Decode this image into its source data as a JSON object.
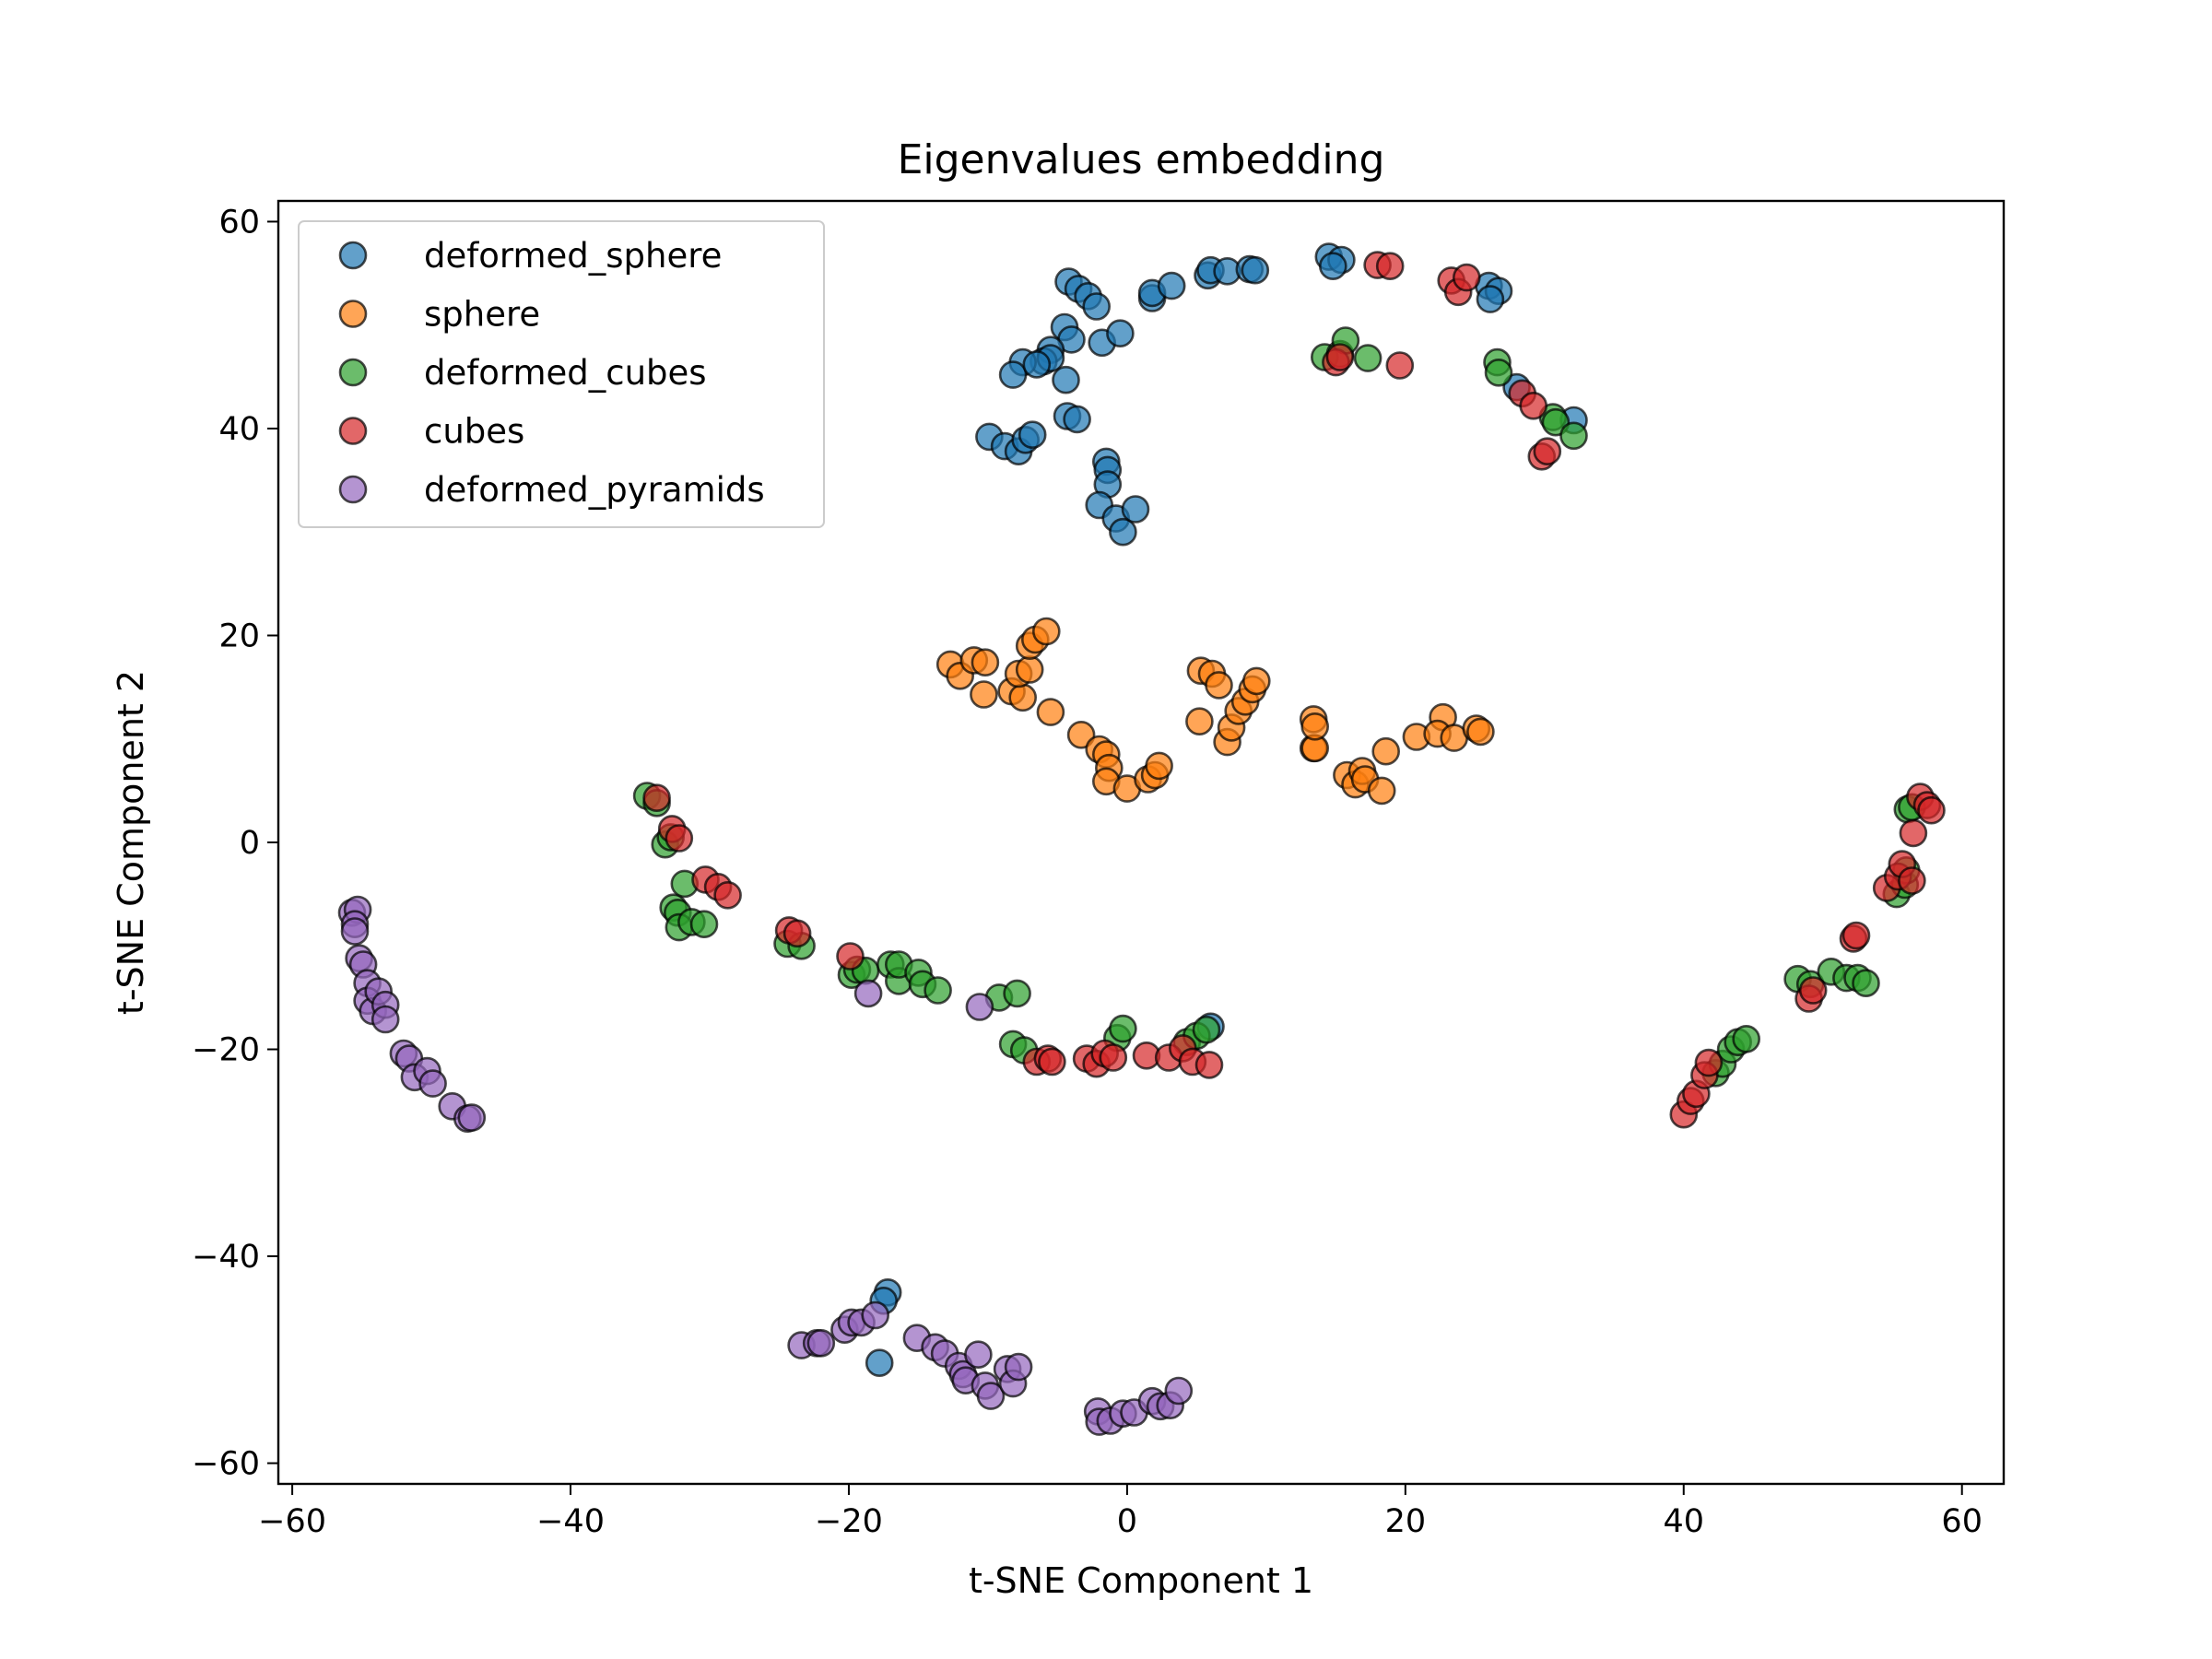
{
  "chart_data": {
    "type": "scatter",
    "title": "Eigenvalues embedding",
    "xlabel": "t-SNE Component 1",
    "ylabel": "t-SNE Component 2",
    "xlim": [
      -61,
      63
    ],
    "ylim": [
      -62,
      62
    ],
    "xticks": [
      -60,
      -40,
      -20,
      0,
      20,
      40,
      60
    ],
    "yticks": [
      -60,
      -40,
      -20,
      0,
      20,
      40,
      60
    ],
    "tick_labels_x": [
      "−60",
      "−40",
      "−20",
      "0",
      "20",
      "40",
      "60"
    ],
    "tick_labels_y": [
      "−60",
      "−40",
      "−20",
      "0",
      "20",
      "40",
      "60"
    ],
    "grid": false,
    "legend_position": "upper-left",
    "series": [
      {
        "name": "deformed_sphere",
        "color": "#1f77b4",
        "points": [
          [
            -4.2,
            54.2
          ],
          [
            -3.5,
            53.5
          ],
          [
            -2.8,
            52.8
          ],
          [
            -2.2,
            51.8
          ],
          [
            -4.5,
            49.8
          ],
          [
            -4,
            48.6
          ],
          [
            -5.5,
            47.6
          ],
          [
            -6,
            46.5
          ],
          [
            -5.5,
            46.8
          ],
          [
            -7.5,
            46.4
          ],
          [
            -8.2,
            45.2
          ],
          [
            -4.4,
            44.7
          ],
          [
            -6.5,
            46.2
          ],
          [
            -1.8,
            48.3
          ],
          [
            -0.5,
            49.2
          ],
          [
            -4.3,
            41.2
          ],
          [
            -3.6,
            40.9
          ],
          [
            -9.9,
            39.2
          ],
          [
            -8.8,
            38.3
          ],
          [
            -7.8,
            37.8
          ],
          [
            -7.3,
            38.9
          ],
          [
            -6.8,
            39.4
          ],
          [
            -1.5,
            36.8
          ],
          [
            -1.4,
            36
          ],
          [
            -1.4,
            34.6
          ],
          [
            -2,
            32.6
          ],
          [
            -0.8,
            31.3
          ],
          [
            -0.3,
            30
          ],
          [
            0.6,
            32.2
          ],
          [
            1.8,
            52.6
          ],
          [
            1.8,
            53.1
          ],
          [
            3.2,
            53.8
          ],
          [
            5.8,
            54.8
          ],
          [
            6,
            55.3
          ],
          [
            7.2,
            55.2
          ],
          [
            8.8,
            55.4
          ],
          [
            9.2,
            55.3
          ],
          [
            14.5,
            56.6
          ],
          [
            15.4,
            56.3
          ],
          [
            14.8,
            55.7
          ],
          [
            26,
            53.8
          ],
          [
            26.7,
            53.3
          ],
          [
            26.1,
            52.5
          ],
          [
            28,
            44
          ],
          [
            32.1,
            40.8
          ],
          [
            -17.2,
            -43.5
          ],
          [
            -17.5,
            -44.3
          ],
          [
            -17.8,
            -50.3
          ],
          [
            6,
            -17.8
          ]
        ]
      },
      {
        "name": "sphere",
        "color": "#ff7f0e",
        "points": [
          [
            -12.7,
            17.2
          ],
          [
            -12,
            16.1
          ],
          [
            -11,
            17.6
          ],
          [
            -10.2,
            17.4
          ],
          [
            -10.3,
            14.3
          ],
          [
            -8.3,
            14.6
          ],
          [
            -7.5,
            14
          ],
          [
            -7.8,
            16.3
          ],
          [
            -7,
            16.7
          ],
          [
            -7,
            19
          ],
          [
            -6.6,
            19.6
          ],
          [
            -5.8,
            20.4
          ],
          [
            -5.5,
            12.6
          ],
          [
            -3.3,
            10.4
          ],
          [
            -2,
            9
          ],
          [
            -1.5,
            8.5
          ],
          [
            -1.3,
            7.2
          ],
          [
            -1.5,
            5.9
          ],
          [
            0,
            5.2
          ],
          [
            1.5,
            6.1
          ],
          [
            2,
            6.5
          ],
          [
            2.3,
            7.4
          ],
          [
            5.3,
            16.6
          ],
          [
            6.1,
            16.3
          ],
          [
            6.6,
            15.2
          ],
          [
            5.2,
            11.7
          ],
          [
            7.2,
            9.7
          ],
          [
            7.5,
            11.1
          ],
          [
            8,
            12.7
          ],
          [
            8.5,
            13.6
          ],
          [
            9,
            14.8
          ],
          [
            9.3,
            15.6
          ],
          [
            13.4,
            11.9
          ],
          [
            13.4,
            9.1
          ],
          [
            13.5,
            9.1
          ],
          [
            13.5,
            11.2
          ],
          [
            15.8,
            6.5
          ],
          [
            16.4,
            5.6
          ],
          [
            16.9,
            6.9
          ],
          [
            17.1,
            6.1
          ],
          [
            18.3,
            5
          ],
          [
            18.6,
            8.8
          ],
          [
            20.8,
            10.2
          ],
          [
            22.7,
            12.1
          ],
          [
            22.3,
            10.5
          ],
          [
            23.5,
            10.1
          ],
          [
            25.1,
            11
          ],
          [
            25.4,
            10.7
          ]
        ]
      },
      {
        "name": "deformed_cubes",
        "color": "#2ca02c",
        "points": [
          [
            -34.5,
            4.5
          ],
          [
            -33.8,
            3.8
          ],
          [
            -33.2,
            -0.2
          ],
          [
            -32.8,
            0.5
          ],
          [
            -32.6,
            -6.3
          ],
          [
            -32.3,
            -6.8
          ],
          [
            -32.2,
            -8.2
          ],
          [
            -31.8,
            -4
          ],
          [
            -31.3,
            -7.7
          ],
          [
            -30.4,
            -7.9
          ],
          [
            -24.4,
            -9.8
          ],
          [
            -23.4,
            -10
          ],
          [
            -19.8,
            -12.8
          ],
          [
            -19.4,
            -12.3
          ],
          [
            -18.8,
            -12.4
          ],
          [
            -17,
            -11.8
          ],
          [
            -16.4,
            -13.4
          ],
          [
            -16.4,
            -11.8
          ],
          [
            -15,
            -12.6
          ],
          [
            -14.7,
            -13.7
          ],
          [
            -13.6,
            -14.3
          ],
          [
            -9.2,
            -15
          ],
          [
            -7.9,
            -14.6
          ],
          [
            -8.2,
            -19.5
          ],
          [
            -7.4,
            -20.1
          ],
          [
            -0.7,
            -18.9
          ],
          [
            -0.3,
            -18
          ],
          [
            4.3,
            -19.3
          ],
          [
            5,
            -18.7
          ],
          [
            5.7,
            -18.1
          ],
          [
            14.2,
            46.9
          ],
          [
            15.3,
            47.2
          ],
          [
            15.7,
            48.5
          ],
          [
            17.3,
            46.8
          ],
          [
            26.6,
            46.4
          ],
          [
            26.7,
            45.4
          ],
          [
            30.6,
            41.1
          ],
          [
            30.8,
            40.6
          ],
          [
            32.1,
            39.3
          ],
          [
            42.3,
            -22.3
          ],
          [
            42.8,
            -21.4
          ],
          [
            43.4,
            -20
          ],
          [
            43.9,
            -19.3
          ],
          [
            44.5,
            -19
          ],
          [
            48.2,
            -13.2
          ],
          [
            49.1,
            -13.7
          ],
          [
            50.6,
            -12.5
          ],
          [
            51.7,
            -13.1
          ],
          [
            52.5,
            -13.1
          ],
          [
            53.1,
            -13.6
          ],
          [
            55.3,
            -5
          ],
          [
            55.9,
            -4.1
          ],
          [
            56,
            -2.7
          ],
          [
            56.1,
            3.2
          ],
          [
            56.4,
            3.4
          ]
        ]
      },
      {
        "name": "cubes",
        "color": "#d62728",
        "points": [
          [
            -33.8,
            4.3
          ],
          [
            -32.7,
            1.3
          ],
          [
            -32.2,
            0.4
          ],
          [
            -30.3,
            -3.6
          ],
          [
            -29.4,
            -4.3
          ],
          [
            -28.7,
            -5.1
          ],
          [
            -24.3,
            -8.5
          ],
          [
            -23.7,
            -8.8
          ],
          [
            -19.9,
            -11
          ],
          [
            -6.5,
            -21.2
          ],
          [
            -5.7,
            -20.9
          ],
          [
            -5.4,
            -21.2
          ],
          [
            -2.9,
            -20.9
          ],
          [
            -2.2,
            -21.4
          ],
          [
            -1.6,
            -20.4
          ],
          [
            -1,
            -20.8
          ],
          [
            1.4,
            -20.6
          ],
          [
            3,
            -20.8
          ],
          [
            4,
            -19.9
          ],
          [
            4.7,
            -21.2
          ],
          [
            5.9,
            -21.5
          ],
          [
            18,
            55.8
          ],
          [
            18.9,
            55.7
          ],
          [
            15,
            46.4
          ],
          [
            15.3,
            46.9
          ],
          [
            19.6,
            46.1
          ],
          [
            23.3,
            54.3
          ],
          [
            23.8,
            53.2
          ],
          [
            24.4,
            54.6
          ],
          [
            28.4,
            43.4
          ],
          [
            29.2,
            42.2
          ],
          [
            29.8,
            37.3
          ],
          [
            30.2,
            37.8
          ],
          [
            40,
            -26.3
          ],
          [
            40.5,
            -25
          ],
          [
            40.9,
            -24.3
          ],
          [
            41.5,
            -22.5
          ],
          [
            41.8,
            -21.3
          ],
          [
            49,
            -15.1
          ],
          [
            49.3,
            -14.3
          ],
          [
            52.2,
            -9.3
          ],
          [
            52.4,
            -9
          ],
          [
            54.6,
            -4.4
          ],
          [
            55.4,
            -3.3
          ],
          [
            55.7,
            -2.1
          ],
          [
            56.4,
            -3.7
          ],
          [
            56.5,
            0.9
          ],
          [
            57,
            4.4
          ],
          [
            57.5,
            3.6
          ],
          [
            57.8,
            3.1
          ]
        ]
      },
      {
        "name": "deformed_pyramids",
        "color": "#9467bd",
        "points": [
          [
            -55.7,
            -6.8
          ],
          [
            -55.3,
            -6.5
          ],
          [
            -55.5,
            -7.9
          ],
          [
            -55.5,
            -8.6
          ],
          [
            -55.2,
            -11.2
          ],
          [
            -54.9,
            -11.8
          ],
          [
            -54.6,
            -13.6
          ],
          [
            -54.6,
            -15.3
          ],
          [
            -54.2,
            -16.3
          ],
          [
            -53.8,
            -14.4
          ],
          [
            -53.3,
            -15.7
          ],
          [
            -53.3,
            -17.1
          ],
          [
            -52,
            -20.4
          ],
          [
            -51.6,
            -20.9
          ],
          [
            -51.2,
            -22.7
          ],
          [
            -50.3,
            -22.1
          ],
          [
            -49.9,
            -23.3
          ],
          [
            -48.5,
            -25.5
          ],
          [
            -47.4,
            -26.7
          ],
          [
            -47.1,
            -26.6
          ],
          [
            -18.6,
            -14.6
          ],
          [
            -10.6,
            -15.9
          ],
          [
            -23.4,
            -48.6
          ],
          [
            -22.3,
            -48.4
          ],
          [
            -22,
            -48.4
          ],
          [
            -20.3,
            -47.1
          ],
          [
            -19.8,
            -46.4
          ],
          [
            -19.1,
            -46.4
          ],
          [
            -18.1,
            -45.7
          ],
          [
            -15.1,
            -47.9
          ],
          [
            -13.8,
            -48.8
          ],
          [
            -13.1,
            -49.4
          ],
          [
            -12.1,
            -50.6
          ],
          [
            -11.8,
            -51.4
          ],
          [
            -11.6,
            -52
          ],
          [
            -10.7,
            -49.5
          ],
          [
            -10.2,
            -52.5
          ],
          [
            -9.8,
            -53.5
          ],
          [
            -8.6,
            -50.9
          ],
          [
            -8.2,
            -52.3
          ],
          [
            -7.8,
            -50.7
          ],
          [
            -2.1,
            -55
          ],
          [
            -2,
            -56
          ],
          [
            -1.2,
            -55.9
          ],
          [
            -0.3,
            -55.2
          ],
          [
            0.5,
            -55.1
          ],
          [
            1.8,
            -54
          ],
          [
            2.4,
            -54.5
          ],
          [
            3.1,
            -54.4
          ],
          [
            3.7,
            -53
          ]
        ]
      }
    ]
  }
}
